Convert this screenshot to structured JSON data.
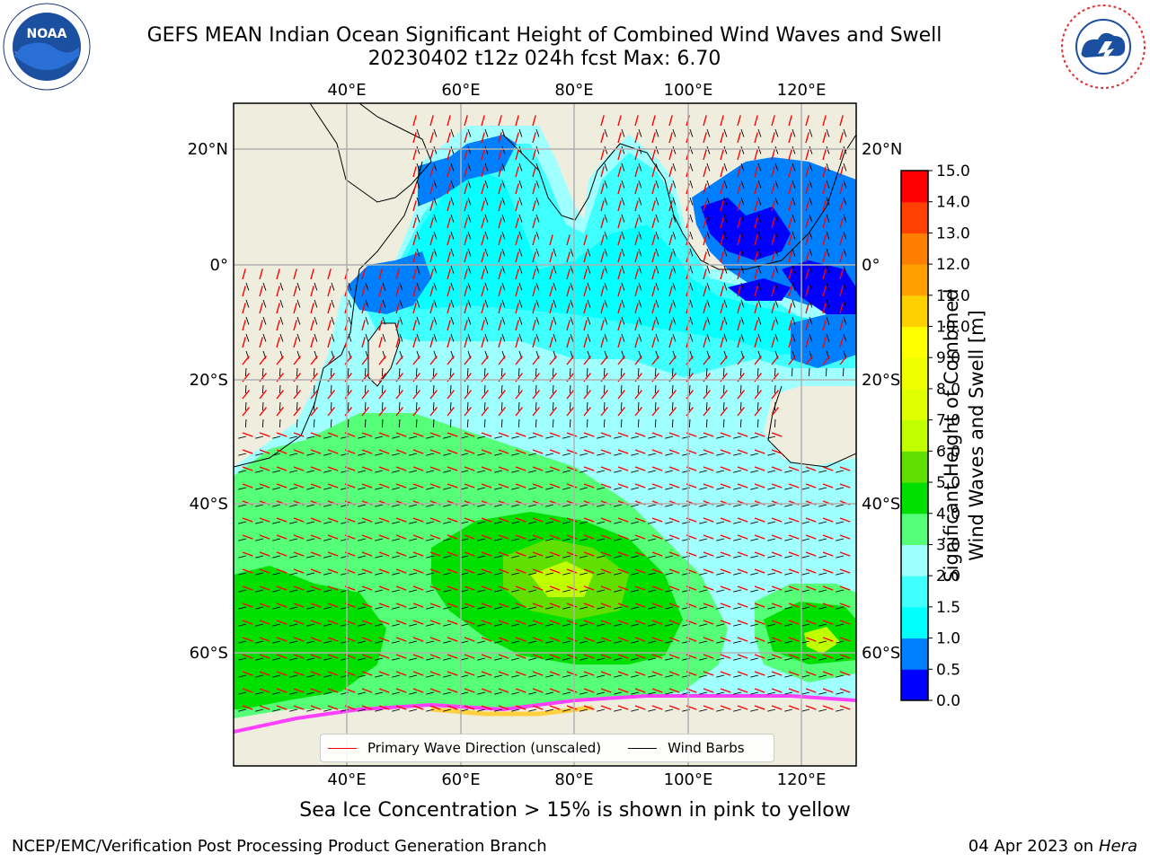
{
  "title_line1": "GEFS MEAN Indian Ocean Significant Height of Combined Wind Waves and Swell",
  "title_line2": "20230402 t12z 024h fcst   Max: 6.70",
  "footer_left": "NCEP/EMC/Verification Post Processing Product Generation Branch",
  "footer_date": "04 Apr 2023 on",
  "footer_host": "Hera",
  "ice_note": "Sea Ice Concentration > 15% is shown in pink to yellow",
  "legend": {
    "wave_label": "Primary Wave Direction (unscaled)",
    "wind_label": "Wind Barbs",
    "wave_color": "#ff0000",
    "wind_color": "#000000"
  },
  "axes": {
    "lon_ticks": [
      "40°E",
      "60°E",
      "80°E",
      "100°E",
      "120°E"
    ],
    "lon_values": [
      40,
      60,
      80,
      100,
      120
    ],
    "lat_ticks": [
      "20°N",
      "0°",
      "20°S",
      "40°S",
      "60°S"
    ],
    "lat_values": [
      20,
      0,
      -20,
      -40,
      -60
    ]
  },
  "colorbar": {
    "label_line1": "Significant Height of Combined",
    "label_line2": "Wind Waves and Swell [m]",
    "levels": [
      "0.0",
      "0.5",
      "1.0",
      "1.5",
      "2.0",
      "3.0",
      "4.0",
      "5.0",
      "6.0",
      "7.0",
      "8.0",
      "9.0",
      "10.0",
      "11.0",
      "12.0",
      "13.0",
      "14.0",
      "15.0"
    ],
    "colors": [
      "#0000ff",
      "#0080ff",
      "#00ffff",
      "#40ffff",
      "#a0ffff",
      "#55ff77",
      "#00e000",
      "#60e000",
      "#c0ff00",
      "#e0ff00",
      "#f0ff00",
      "#ffff00",
      "#ffd000",
      "#ffa000",
      "#ff8000",
      "#ff4000",
      "#ff0000"
    ]
  },
  "map_colors": {
    "land": "#efedde",
    "ice_pink": "#ff40ff",
    "ice_yellow": "#ffd040"
  },
  "icons": {
    "noaa": "noaa-logo",
    "nws": "nws-logo"
  }
}
